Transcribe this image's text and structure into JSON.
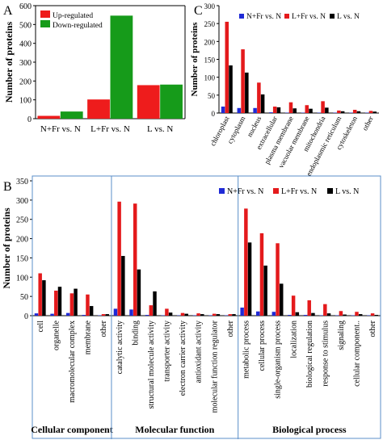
{
  "colors": {
    "blue": "#1f2ad6",
    "red": "#e41a1c",
    "black": "#000000",
    "green": "#169b1a",
    "up_red": "#ee1c1c",
    "frame_blue": "#5b8fc9"
  },
  "chart_data": [
    {
      "panel": "A",
      "type": "bar",
      "ylabel": "Number of proteins",
      "ylim": [
        0,
        600
      ],
      "yticks": [
        0,
        100,
        200,
        300,
        400,
        500,
        600
      ],
      "categories": [
        "N+Fr vs. N",
        "L+Fr vs. N",
        "L vs. N"
      ],
      "series": [
        {
          "name": "Up-regulated",
          "color": "#ee1c1c",
          "values": [
            15,
            102,
            178
          ]
        },
        {
          "name": "Down-regulated",
          "color": "#169b1a",
          "values": [
            38,
            547,
            181
          ]
        }
      ],
      "legend": "top-left"
    },
    {
      "panel": "C",
      "type": "bar",
      "ylabel": "Number of proteins",
      "ylim": [
        0,
        300
      ],
      "yticks": [
        0,
        50,
        100,
        150,
        200,
        250,
        300
      ],
      "categories": [
        "chloroplast",
        "cytoplasm",
        "nucleus",
        "extracellular",
        "plasma membrane",
        "vacuolar membrane",
        "mitochondria",
        "endoplasmic reticulum",
        "cytoskeleton",
        "other"
      ],
      "series": [
        {
          "name": "N+Fr vs. N",
          "color": "#1f2ad6",
          "values": [
            18,
            14,
            14,
            2,
            1,
            1,
            1,
            1,
            1,
            1
          ]
        },
        {
          "name": "L+Fr vs. N",
          "color": "#e41a1c",
          "values": [
            255,
            178,
            85,
            18,
            30,
            22,
            33,
            7,
            9,
            6
          ]
        },
        {
          "name": "L vs. N",
          "color": "#000000",
          "values": [
            133,
            113,
            52,
            16,
            13,
            12,
            15,
            5,
            5,
            4
          ]
        }
      ],
      "legend": "top-right"
    },
    {
      "panel": "B",
      "type": "bar",
      "ylabel": "Number of proteins",
      "ylim": [
        0,
        350
      ],
      "yticks": [
        0,
        50,
        100,
        150,
        200,
        250,
        300,
        350
      ],
      "categories": [
        "cell",
        "organelle",
        "macromolecular complex",
        "membrane",
        "other",
        "catalytic activity",
        "binding",
        "structural molecule activity",
        "transporter activity",
        "electron carrier activity",
        "antioxidant activity",
        "molecular function regulator",
        "other",
        "metabolic process",
        "cellular process",
        "single-organism process",
        "localization",
        "biological regulation",
        "response to stimulus",
        "signaling",
        "cellular component..",
        "other"
      ],
      "groups": [
        {
          "name": "Cellular component",
          "count": 5
        },
        {
          "name": "Molecular function",
          "count": 8
        },
        {
          "name": "Biological process",
          "count": 9
        }
      ],
      "series": [
        {
          "name": "N+Fr vs. N",
          "color": "#1f2ad6",
          "values": [
            6,
            5,
            7,
            2,
            1,
            18,
            16,
            2,
            1,
            1,
            1,
            1,
            1,
            21,
            11,
            10,
            2,
            2,
            1,
            1,
            1,
            1
          ]
        },
        {
          "name": "L+Fr vs. N",
          "color": "#e41a1c",
          "values": [
            110,
            65,
            58,
            55,
            4,
            296,
            291,
            27,
            18,
            7,
            6,
            5,
            4,
            278,
            214,
            188,
            52,
            40,
            30,
            12,
            10,
            6
          ]
        },
        {
          "name": "L vs. N",
          "color": "#000000",
          "values": [
            92,
            75,
            70,
            25,
            4,
            155,
            120,
            63,
            8,
            5,
            4,
            4,
            4,
            190,
            130,
            83,
            9,
            7,
            6,
            3,
            4,
            2
          ]
        }
      ],
      "legend": "top-right"
    }
  ]
}
